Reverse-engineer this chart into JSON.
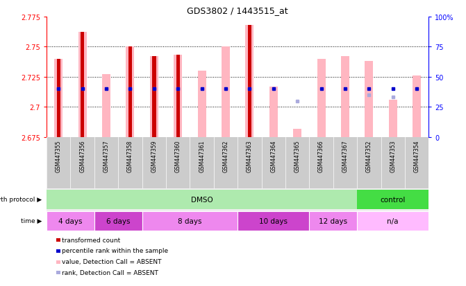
{
  "title": "GDS3802 / 1443515_at",
  "samples": [
    "GSM447355",
    "GSM447356",
    "GSM447357",
    "GSM447358",
    "GSM447359",
    "GSM447360",
    "GSM447361",
    "GSM447362",
    "GSM447363",
    "GSM447364",
    "GSM447365",
    "GSM447366",
    "GSM447367",
    "GSM447352",
    "GSM447353",
    "GSM447354"
  ],
  "ylim": [
    2.675,
    2.775
  ],
  "yticks": [
    2.675,
    2.7,
    2.725,
    2.75,
    2.775
  ],
  "right_ylim": [
    0,
    100
  ],
  "right_yticks": [
    0,
    25,
    50,
    75,
    100
  ],
  "right_yticklabels": [
    "0",
    "25",
    "50",
    "75",
    "100%"
  ],
  "transformed_count": [
    2.74,
    2.762,
    2.727,
    2.75,
    2.742,
    2.743,
    2.73,
    2.75,
    2.768,
    2.717,
    2.682,
    2.74,
    2.742,
    2.738,
    2.706,
    2.726
  ],
  "pink_bar_top": [
    2.74,
    2.762,
    2.727,
    2.75,
    2.742,
    2.743,
    2.73,
    2.75,
    2.768,
    2.717,
    2.682,
    2.74,
    2.742,
    2.738,
    2.706,
    2.726
  ],
  "is_absent_tc": [
    false,
    false,
    true,
    false,
    false,
    false,
    true,
    true,
    false,
    true,
    true,
    true,
    true,
    true,
    true,
    true
  ],
  "percentile_rank_val": [
    40,
    40,
    40,
    40,
    40,
    40,
    40,
    40,
    40,
    40,
    -1,
    40,
    40,
    40,
    40,
    40
  ],
  "percentile_absent_val": [
    40,
    40,
    40,
    40,
    40,
    40,
    40,
    40,
    40,
    40,
    30,
    -1,
    -1,
    35,
    33,
    40
  ],
  "growth_protocol_groups": [
    {
      "label": "DMSO",
      "start": 0,
      "end": 12,
      "color": "#AEEAAE"
    },
    {
      "label": "control",
      "start": 13,
      "end": 15,
      "color": "#44DD44"
    }
  ],
  "time_groups": [
    {
      "label": "4 days",
      "start": 0,
      "end": 1,
      "color": "#EE88EE"
    },
    {
      "label": "6 days",
      "start": 2,
      "end": 3,
      "color": "#CC44CC"
    },
    {
      "label": "8 days",
      "start": 4,
      "end": 7,
      "color": "#EE88EE"
    },
    {
      "label": "10 days",
      "start": 8,
      "end": 10,
      "color": "#CC44CC"
    },
    {
      "label": "12 days",
      "start": 11,
      "end": 12,
      "color": "#EE88EE"
    },
    {
      "label": "n/a",
      "start": 13,
      "end": 15,
      "color": "#FFBBFF"
    }
  ],
  "legend_items": [
    {
      "label": "transformed count",
      "color": "#CC0000"
    },
    {
      "label": "percentile rank within the sample",
      "color": "#0000CC"
    },
    {
      "label": "value, Detection Call = ABSENT",
      "color": "#FFB6C1"
    },
    {
      "label": "rank, Detection Call = ABSENT",
      "color": "#AAAADD"
    }
  ],
  "bar_width": 0.35,
  "pink_color": "#FFB6C1",
  "red_color": "#CC0000",
  "blue_color": "#0000CC",
  "light_blue_color": "#AAAADD",
  "bg_color": "#FFFFFF",
  "label_area_color": "#CCCCCC",
  "grid_yticks": [
    2.7,
    2.725,
    2.75
  ]
}
